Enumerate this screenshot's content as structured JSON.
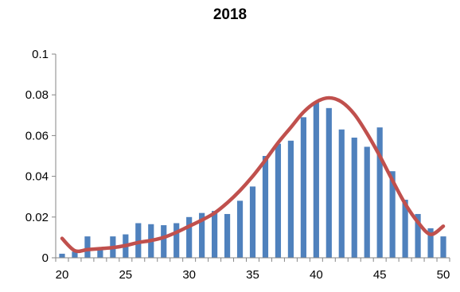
{
  "chart_data": {
    "type": "bar",
    "title": "2018",
    "xlabel": "",
    "ylabel": "",
    "xlim": [
      20,
      50
    ],
    "ylim": [
      0,
      0.1
    ],
    "x_ticks": [
      20,
      25,
      30,
      35,
      40,
      45,
      50
    ],
    "y_ticks": [
      0,
      0.02,
      0.04,
      0.06,
      0.08,
      0.1
    ],
    "y_tick_labels": [
      "0",
      "0.02",
      "0.04",
      "0.06",
      "0.08",
      "0.1"
    ],
    "grid": false,
    "legend": "none",
    "colors": {
      "bars": "#4F81BD",
      "curve": "#C0504D",
      "axis": "#868686"
    },
    "series": [
      {
        "type": "bar",
        "x": [
          20,
          21,
          22,
          23,
          24,
          25,
          26,
          27,
          28,
          29,
          30,
          31,
          32,
          33,
          34,
          35,
          36,
          37,
          38,
          39,
          40,
          41,
          42,
          43,
          44,
          45,
          46,
          47,
          48,
          49,
          50
        ],
        "values": [
          0.002,
          0.003,
          0.0105,
          0.0045,
          0.0105,
          0.0115,
          0.017,
          0.0165,
          0.016,
          0.017,
          0.02,
          0.022,
          0.023,
          0.0215,
          0.028,
          0.035,
          0.05,
          0.056,
          0.0575,
          0.069,
          0.0765,
          0.0735,
          0.063,
          0.059,
          0.0545,
          0.064,
          0.0425,
          0.0285,
          0.0215,
          0.0145,
          0.0105
        ]
      },
      {
        "type": "line",
        "x": [
          20,
          21,
          22,
          23,
          24,
          25,
          26,
          27,
          28,
          29,
          30,
          31,
          32,
          33,
          34,
          35,
          36,
          37,
          38,
          39,
          40,
          41,
          42,
          43,
          44,
          45,
          46,
          47,
          48,
          49,
          50
        ],
        "values": [
          0.0095,
          0.0035,
          0.004,
          0.0045,
          0.005,
          0.006,
          0.0075,
          0.0085,
          0.01,
          0.0125,
          0.0155,
          0.0185,
          0.022,
          0.027,
          0.033,
          0.04,
          0.048,
          0.0565,
          0.064,
          0.0715,
          0.0765,
          0.0785,
          0.0765,
          0.0705,
          0.061,
          0.05,
          0.038,
          0.0265,
          0.0175,
          0.0115,
          0.0155
        ]
      }
    ]
  }
}
